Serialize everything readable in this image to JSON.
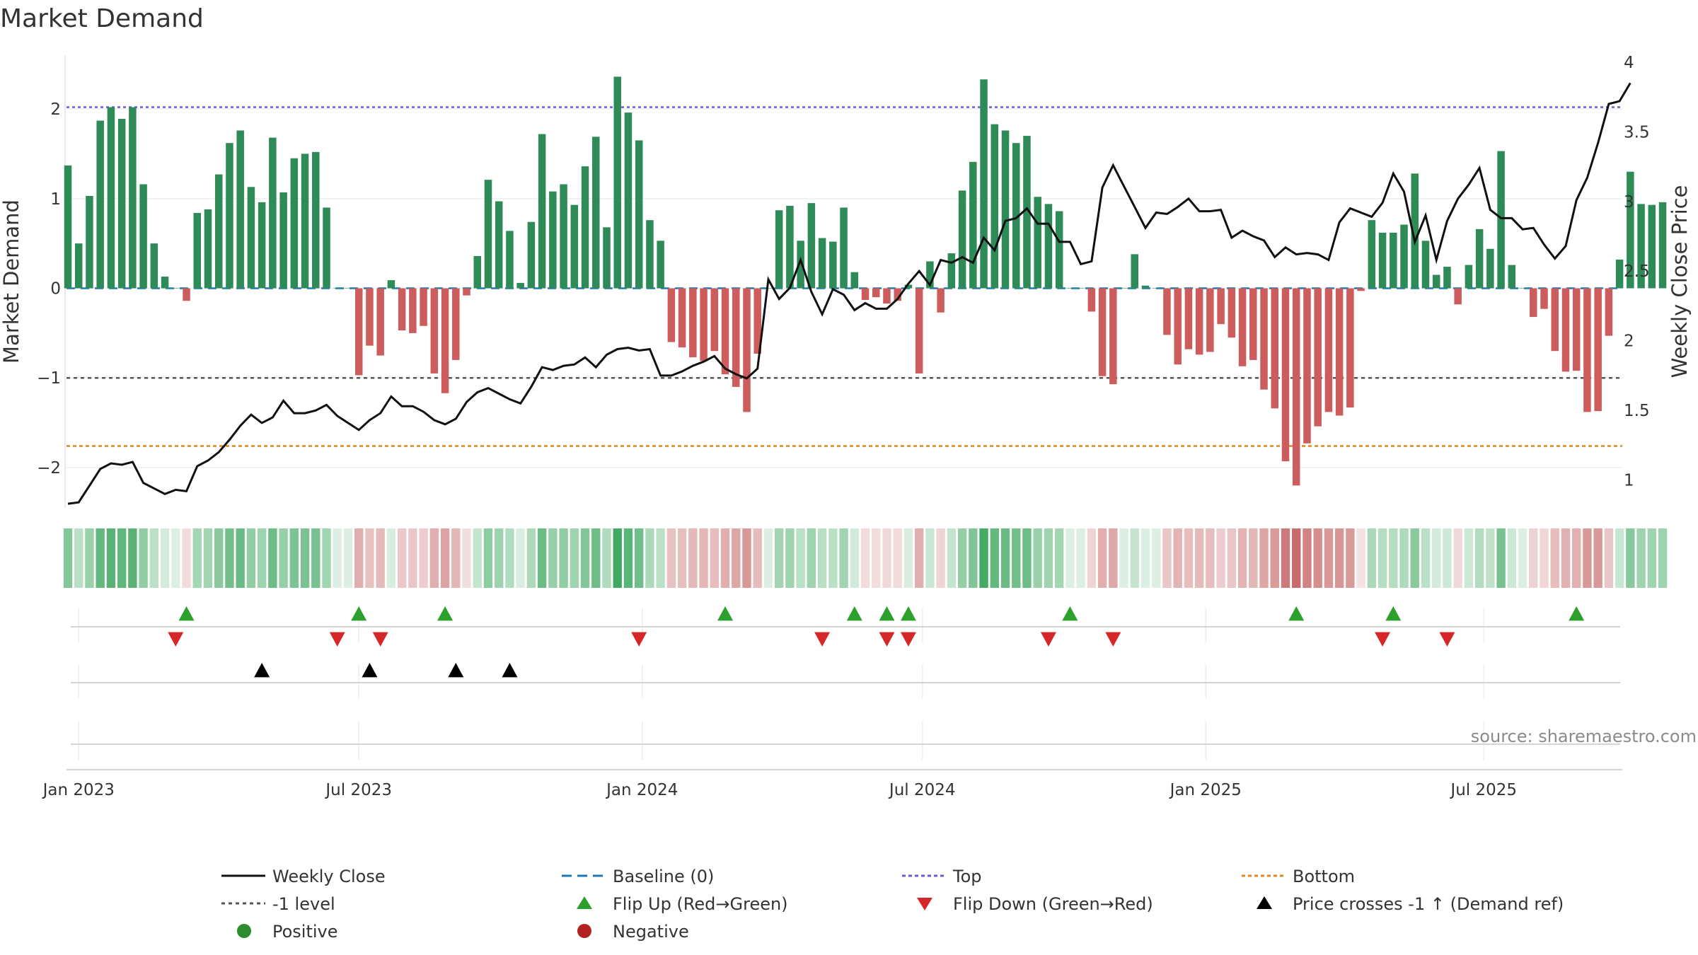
{
  "title": "Market Demand",
  "source_text": "source: sharemaestro.com",
  "colors": {
    "positive_bar": "#2e8b57",
    "negative_bar": "#cd5c5c",
    "price_line": "#111111",
    "baseline": "#1f77b4",
    "top_line": "#6a5acd",
    "bottom_line": "#d98a1b",
    "minus_one_line": "#555555",
    "flip_up": "#2ca02c",
    "flip_down": "#d62728",
    "cross_marker": "#000000",
    "positive_dot": "#2e8b2e",
    "negative_dot": "#b22222"
  },
  "legend": [
    {
      "label": "Weekly Close",
      "symbol": "solid-line-black"
    },
    {
      "label": "Baseline (0)",
      "symbol": "dashed-line-blue"
    },
    {
      "label": "Top",
      "symbol": "dotted-line-purple"
    },
    {
      "label": "Bottom",
      "symbol": "dotted-line-orange"
    },
    {
      "label": "-1 level",
      "symbol": "dotted-line-gray"
    },
    {
      "label": "Flip Up (Red→Green)",
      "symbol": "triangle-up-green"
    },
    {
      "label": "Flip Down (Green→Red)",
      "symbol": "triangle-down-red"
    },
    {
      "label": "Price crosses -1 ↑ (Demand ref)",
      "symbol": "triangle-up-black"
    },
    {
      "label": "Positive",
      "symbol": "circle-green"
    },
    {
      "label": "Negative",
      "symbol": "circle-red"
    }
  ],
  "chart_data": {
    "type": "bar",
    "title": "Market Demand",
    "ylabel": "Market Demand",
    "y2label": "Weekly Close Price",
    "ylim": [
      -2.45,
      2.6
    ],
    "y2lim": [
      0.8,
      4.05
    ],
    "yticks": [
      2,
      1,
      0,
      -1,
      -2
    ],
    "ytick_labels": [
      "2",
      "1",
      "0",
      "−1",
      "−2"
    ],
    "y2ticks": [
      4,
      3.5,
      3,
      2.5,
      2,
      1.5,
      1
    ],
    "y2tick_labels": [
      "4",
      "3.5",
      "3",
      "2.5",
      "2",
      "1.5",
      "1"
    ],
    "x_start_week_offset": -1,
    "xticks": [
      {
        "label": "Jan 2023",
        "week": 0
      },
      {
        "label": "Jul 2023",
        "week": 26
      },
      {
        "label": "Jan 2024",
        "week": 52.3
      },
      {
        "label": "Jul 2024",
        "week": 78.3
      },
      {
        "label": "Jan 2025",
        "week": 104.6
      },
      {
        "label": "Jul 2025",
        "week": 130.4
      }
    ],
    "reference_lines": {
      "top": 2.02,
      "bottom": -1.76,
      "minus_one": -1,
      "baseline": 0
    },
    "demand": [
      1.37,
      0.5,
      1.03,
      1.87,
      2.02,
      1.89,
      2.02,
      1.16,
      0.5,
      0.13,
      0,
      -0.14,
      0.84,
      0.88,
      1.27,
      1.62,
      1.76,
      1.13,
      0.96,
      1.68,
      1.07,
      1.45,
      1.5,
      1.52,
      0.9,
      0,
      0,
      -0.97,
      -0.64,
      -0.75,
      0.09,
      -0.47,
      -0.5,
      -0.42,
      -0.95,
      -1.17,
      -0.8,
      -0.08,
      0.36,
      1.21,
      0.97,
      0.64,
      0.06,
      0.74,
      1.72,
      1.08,
      1.16,
      0.93,
      1.36,
      1.69,
      0.68,
      2.36,
      1.96,
      1.65,
      0.76,
      0.53,
      -0.6,
      -0.66,
      -0.77,
      -0.81,
      -0.7,
      -0.96,
      -1.1,
      -1.38,
      -0.73,
      0,
      0.87,
      0.92,
      0.53,
      0.95,
      0.56,
      0.52,
      0.9,
      0.18,
      -0.13,
      -0.1,
      -0.17,
      -0.14,
      0.04,
      -0.95,
      0.3,
      -0.27,
      0.39,
      1.09,
      1.41,
      2.33,
      1.83,
      1.76,
      1.62,
      1.7,
      1.02,
      0.94,
      0.86,
      0,
      0,
      -0.26,
      -0.98,
      -1.07,
      0,
      0.38,
      0.03,
      0,
      -0.52,
      -0.85,
      -0.68,
      -0.74,
      -0.71,
      -0.4,
      -0.55,
      -0.87,
      -0.8,
      -1.13,
      -1.34,
      -1.93,
      -2.2,
      -1.73,
      -1.54,
      -1.38,
      -1.42,
      -1.33,
      -0.03,
      0.76,
      0.62,
      0.62,
      0.71,
      1.28,
      0.53,
      0.15,
      0.24,
      -0.18,
      0.26,
      0.66,
      0.44,
      1.53,
      0.26,
      0,
      -0.32,
      -0.23,
      -0.7,
      -0.93,
      -0.92,
      -1.38,
      -1.37,
      -0.53,
      0.32,
      1.3,
      0.94,
      0.93,
      0.96
    ],
    "close": [
      0.83,
      0.84,
      0.96,
      1.08,
      1.12,
      1.11,
      1.13,
      0.98,
      0.94,
      0.9,
      0.93,
      0.92,
      1.1,
      1.14,
      1.2,
      1.29,
      1.39,
      1.47,
      1.41,
      1.45,
      1.57,
      1.48,
      1.48,
      1.5,
      1.54,
      1.46,
      1.41,
      1.36,
      1.43,
      1.48,
      1.6,
      1.53,
      1.53,
      1.49,
      1.43,
      1.4,
      1.44,
      1.56,
      1.63,
      1.66,
      1.62,
      1.58,
      1.55,
      1.67,
      1.81,
      1.79,
      1.82,
      1.83,
      1.88,
      1.81,
      1.9,
      1.94,
      1.95,
      1.93,
      1.94,
      1.75,
      1.75,
      1.78,
      1.82,
      1.85,
      1.89,
      1.8,
      1.76,
      1.73,
      1.8,
      2.44,
      2.3,
      2.38,
      2.58,
      2.35,
      2.19,
      2.37,
      2.33,
      2.22,
      2.27,
      2.23,
      2.23,
      2.3,
      2.41,
      2.5,
      2.4,
      2.58,
      2.56,
      2.6,
      2.56,
      2.74,
      2.65,
      2.86,
      2.88,
      2.95,
      2.84,
      2.84,
      2.71,
      2.71,
      2.55,
      2.57,
      3.1,
      3.26,
      3.11,
      2.96,
      2.81,
      2.92,
      2.91,
      2.96,
      3.02,
      2.93,
      2.93,
      2.94,
      2.74,
      2.79,
      2.75,
      2.72,
      2.6,
      2.67,
      2.62,
      2.63,
      2.62,
      2.58,
      2.85,
      2.95,
      2.92,
      2.89,
      2.99,
      3.2,
      3.07,
      2.71,
      2.9,
      2.58,
      2.86,
      3.02,
      3.12,
      3.24,
      2.94,
      2.88,
      2.88,
      2.8,
      2.81,
      2.69,
      2.59,
      2.68,
      3.01,
      3.17,
      3.42,
      3.7,
      3.72,
      3.85
    ],
    "flip_up_weeks": [
      10,
      26,
      34,
      60,
      72,
      75,
      77,
      92,
      113,
      122,
      139
    ],
    "flip_down_weeks": [
      9,
      24,
      28,
      52,
      69,
      75,
      77,
      90,
      96,
      121,
      127
    ],
    "price_cross_weeks": [
      17,
      27,
      35,
      40
    ]
  }
}
